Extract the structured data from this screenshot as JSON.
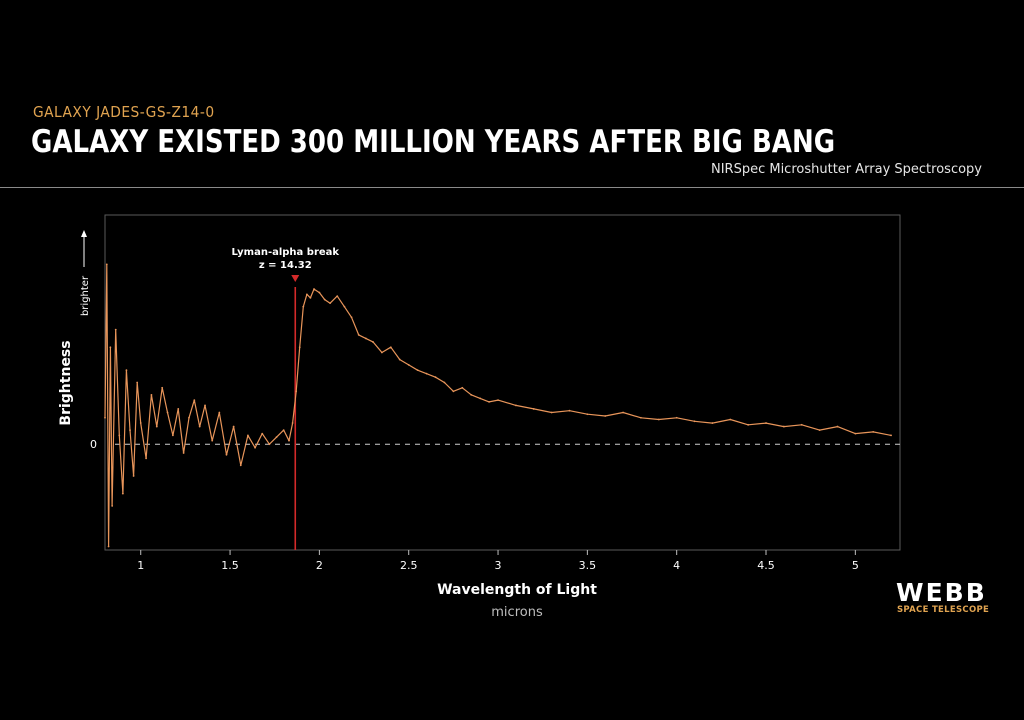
{
  "header": {
    "subtitle": "GALAXY JADES-GS-Z14-0",
    "title": "GALAXY EXISTED 300 MILLION YEARS AFTER BIG BANG",
    "instrument": "NIRSpec Microshutter Array Spectroscopy"
  },
  "logo": {
    "name": "WEBB",
    "tagline": "SPACE TELESCOPE"
  },
  "colors": {
    "background": "#000000",
    "spectrum": "#e8955a",
    "break_line": "#d42a2a",
    "accent": "#e0a350",
    "axis": "#bfbfbf"
  },
  "chart_data": {
    "type": "line",
    "xlabel": "Wavelength of Light",
    "xunit": "microns",
    "ylabel": "Brightness",
    "y_direction_label": "brighter",
    "xlim": [
      0.8,
      5.25
    ],
    "xticks": [
      1,
      1.5,
      2,
      2.5,
      3,
      3.5,
      4,
      4.5,
      5
    ],
    "xtick_labels": [
      "1",
      "1.5",
      "2",
      "2.5",
      "3",
      "3.5",
      "4",
      "4.5",
      "5"
    ],
    "ylim": [
      -0.6,
      1.3
    ],
    "yticks": [
      0
    ],
    "ytick_labels": [
      "0"
    ],
    "zero_line": "dashed",
    "annotation": {
      "label": "Lyman-alpha break",
      "sublabel": "z = 14.32",
      "x": 1.865
    },
    "series": [
      {
        "x": [
          0.8,
          0.81,
          0.82,
          0.83,
          0.84,
          0.86,
          0.88,
          0.9,
          0.92,
          0.94,
          0.96,
          0.98,
          1.0,
          1.03,
          1.06,
          1.09,
          1.12,
          1.15,
          1.18,
          1.21,
          1.24,
          1.27,
          1.3,
          1.33,
          1.36,
          1.4,
          1.44,
          1.48,
          1.52,
          1.56,
          1.6,
          1.64,
          1.68,
          1.72,
          1.76,
          1.8,
          1.83,
          1.85,
          1.87,
          1.89,
          1.91,
          1.93,
          1.95,
          1.97,
          2.0,
          2.03,
          2.06,
          2.1,
          2.14,
          2.18,
          2.22,
          2.26,
          2.3,
          2.35,
          2.4,
          2.45,
          2.5,
          2.55,
          2.6,
          2.65,
          2.7,
          2.75,
          2.8,
          2.85,
          2.9,
          2.95,
          3.0,
          3.1,
          3.2,
          3.3,
          3.4,
          3.5,
          3.6,
          3.7,
          3.8,
          3.9,
          4.0,
          4.1,
          4.2,
          4.3,
          4.4,
          4.5,
          4.6,
          4.7,
          4.8,
          4.9,
          5.0,
          5.1,
          5.2
        ],
        "y": [
          0.15,
          1.02,
          -0.58,
          0.55,
          -0.35,
          0.65,
          0.05,
          -0.28,
          0.42,
          0.08,
          -0.18,
          0.35,
          0.12,
          -0.08,
          0.28,
          0.1,
          0.32,
          0.18,
          0.05,
          0.2,
          -0.05,
          0.15,
          0.25,
          0.1,
          0.22,
          0.02,
          0.18,
          -0.06,
          0.1,
          -0.12,
          0.05,
          -0.02,
          0.06,
          0.0,
          0.04,
          0.08,
          0.02,
          0.12,
          0.3,
          0.55,
          0.78,
          0.85,
          0.83,
          0.88,
          0.86,
          0.82,
          0.8,
          0.84,
          0.78,
          0.72,
          0.62,
          0.6,
          0.58,
          0.52,
          0.55,
          0.48,
          0.45,
          0.42,
          0.4,
          0.38,
          0.35,
          0.3,
          0.32,
          0.28,
          0.26,
          0.24,
          0.25,
          0.22,
          0.2,
          0.18,
          0.19,
          0.17,
          0.16,
          0.18,
          0.15,
          0.14,
          0.15,
          0.13,
          0.12,
          0.14,
          0.11,
          0.12,
          0.1,
          0.11,
          0.08,
          0.1,
          0.06,
          0.07,
          0.05
        ]
      }
    ]
  }
}
